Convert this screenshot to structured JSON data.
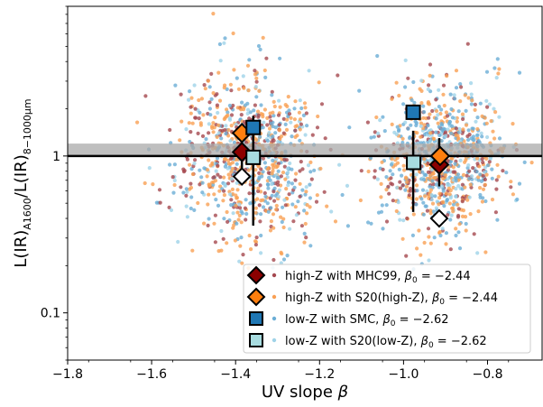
{
  "chart_data": {
    "type": "scatter",
    "xlabel": "UV slope β",
    "ylabel": "L(IR)A1600/L(IR)8−1000μm",
    "xlim": [
      -1.8,
      -0.67
    ],
    "ylim": [
      0.05,
      9.0
    ],
    "yscale": "log",
    "xticks": [
      "−1.8",
      "−1.6",
      "−1.4",
      "−1.2",
      "−1.0",
      "−0.8"
    ],
    "yticks": [
      "0.1",
      "1"
    ],
    "reference_line": 1.0,
    "reference_band": [
      1.0,
      1.2
    ],
    "legend_position": "lower-right",
    "series": [
      {
        "name": "high-Z with MHC99, β0 = −2.44",
        "label_main": "high-Z with MHC99, ",
        "label_beta": "β",
        "label_sub": "0",
        "label_value": " = −2.44",
        "marker": "diamond",
        "color": "#8b0000",
        "dot_color": "#a5484f",
        "points": [
          {
            "x": -1.385,
            "y": 1.06,
            "yerr_low": 0.72,
            "yerr_high": 1.55
          },
          {
            "x": -0.915,
            "y": 0.88,
            "yerr_low": 0.64,
            "yerr_high": 1.3
          }
        ]
      },
      {
        "name": "high-Z with S20(high-Z), β0 = −2.44",
        "label_main": "high-Z with S20(high-Z), ",
        "label_beta": "β",
        "label_sub": "0",
        "label_value": " = −2.44",
        "marker": "diamond",
        "color": "#ff7f0e",
        "dot_color": "#f9a054",
        "points": [
          {
            "x": -1.385,
            "y": 1.4
          },
          {
            "x": -0.913,
            "y": 1.0
          }
        ]
      },
      {
        "name": "low-Z with SMC, β0 = −2.62",
        "label_main": "low-Z with SMC, ",
        "label_beta": "β",
        "label_sub": "0",
        "label_value": " = −2.62",
        "marker": "square",
        "color": "#1f77b4",
        "dot_color": "#6baed6",
        "points": [
          {
            "x": -1.358,
            "y": 1.52,
            "yerr_low": 0.36,
            "yerr_high": 1.8
          },
          {
            "x": -0.977,
            "y": 1.9,
            "yerr_low": 0.44,
            "yerr_high": 1.45
          }
        ]
      },
      {
        "name": "low-Z with S20(low-Z), β0 = −2.62",
        "label_main": "low-Z with S20(low-Z), ",
        "label_beta": "β",
        "label_sub": "0",
        "label_value": " = −2.62",
        "marker": "square",
        "color": "#a8dce0",
        "dot_color": "#9fd3e8",
        "points": [
          {
            "x": -1.358,
            "y": 0.98
          },
          {
            "x": -0.976,
            "y": 0.91
          }
        ]
      }
    ],
    "open_markers": [
      {
        "shape": "diamond",
        "x": -1.385,
        "y": 0.74
      },
      {
        "shape": "diamond",
        "x": -0.915,
        "y": 0.4
      }
    ],
    "clouds": [
      {
        "x_center": -1.37,
        "x_spread": 0.085,
        "y_center": 1.0,
        "y_log_spread": 0.26
      },
      {
        "x_center": -0.91,
        "x_spread": 0.075,
        "y_center": 0.95,
        "y_log_spread": 0.23
      }
    ]
  }
}
